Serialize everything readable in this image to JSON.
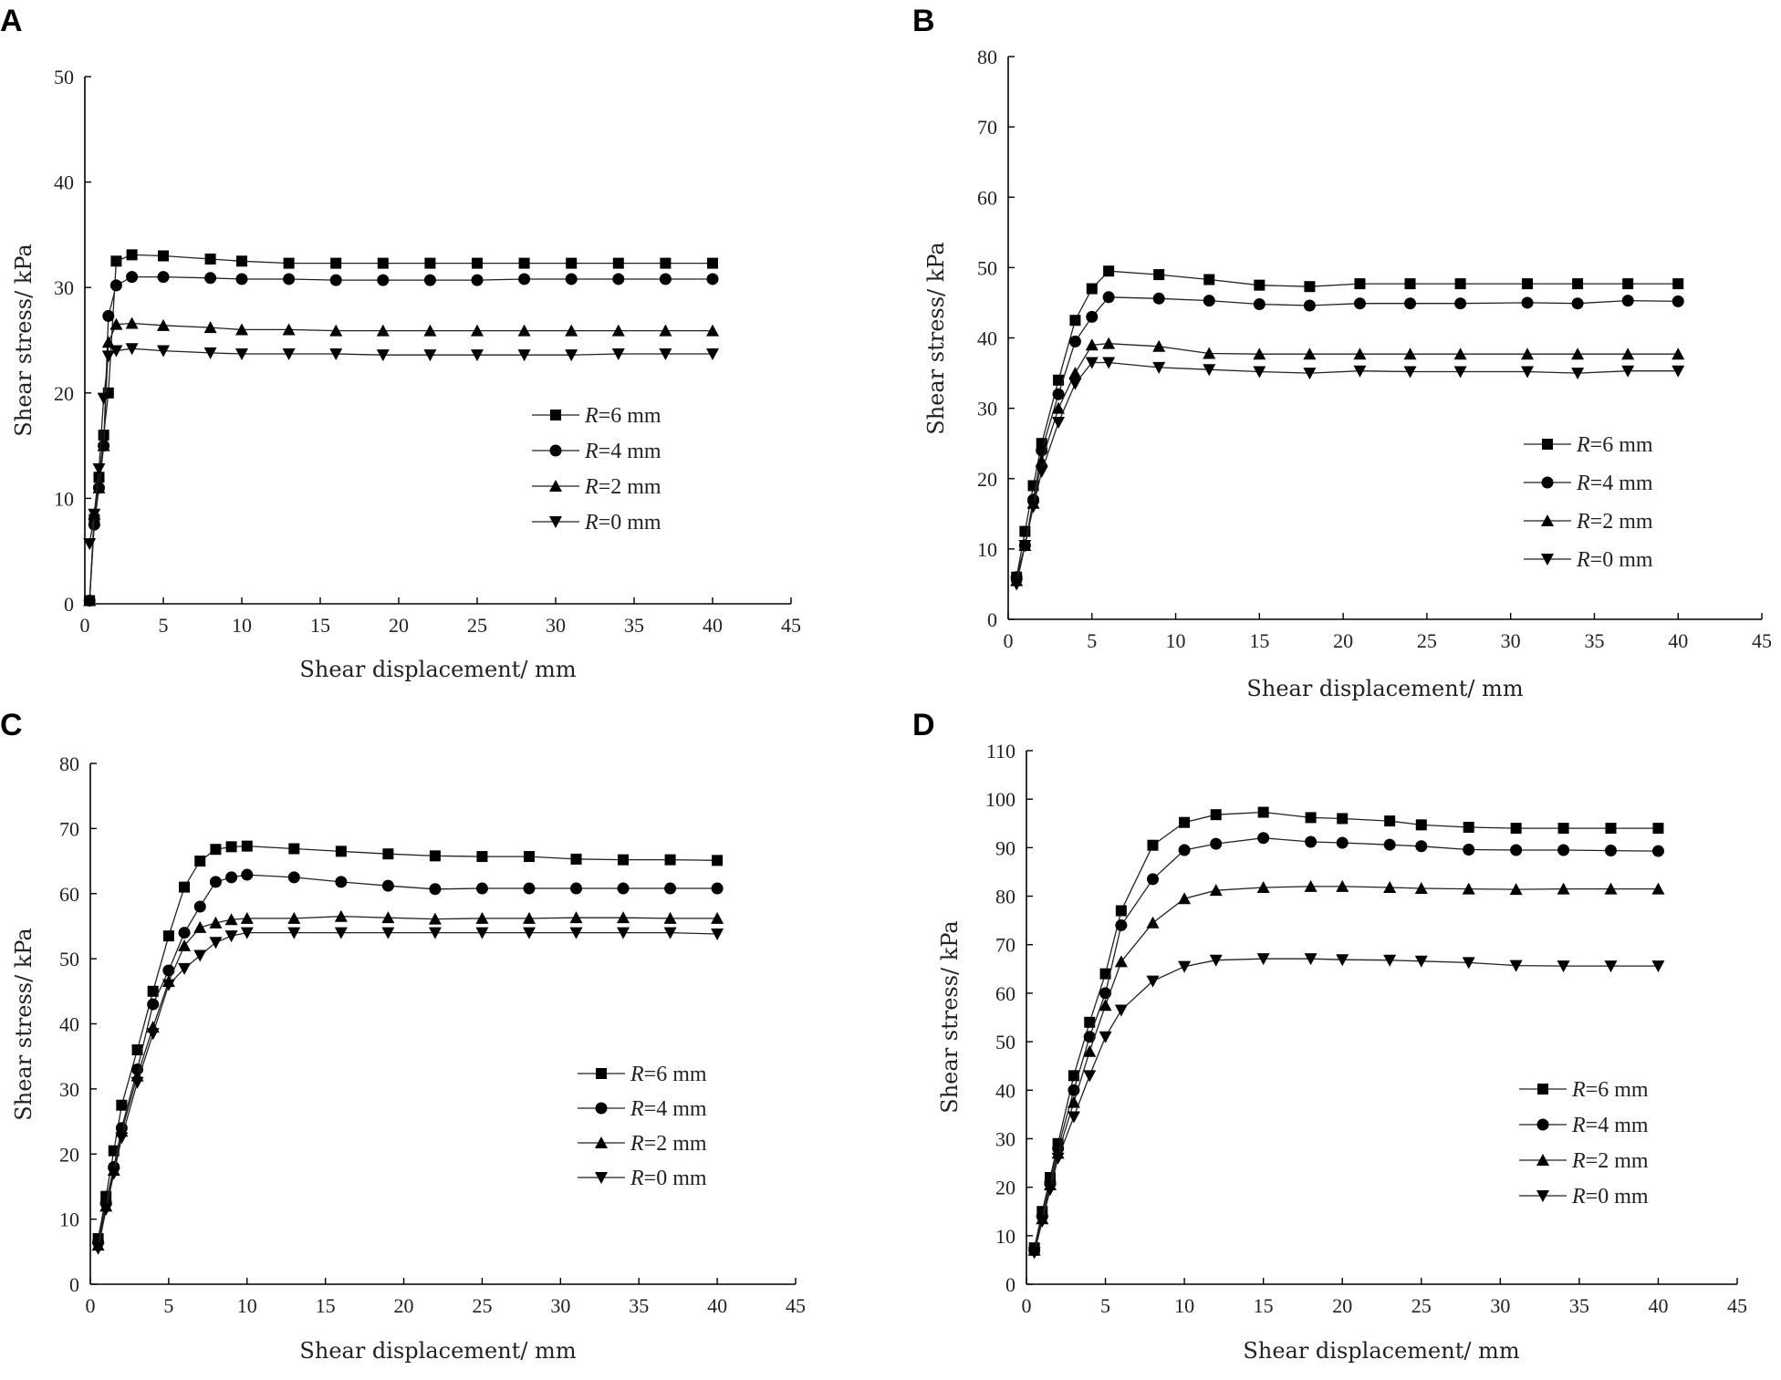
{
  "chart_data": [
    {
      "panel": "A",
      "type": "line",
      "title": "",
      "xlabel": "Shear displacement/ mm",
      "ylabel": "Shear stress/ kPa",
      "xlim": [
        0,
        45
      ],
      "ylim": [
        0,
        50
      ],
      "xticks": [
        0,
        5,
        10,
        15,
        20,
        25,
        30,
        35,
        40,
        45
      ],
      "yticks": [
        0,
        10,
        20,
        30,
        40,
        50
      ],
      "grid": false,
      "legend_position": "right-middle",
      "series": [
        {
          "name": "R=6 mm",
          "marker": "square",
          "x": [
            0.3,
            0.6,
            0.9,
            1.2,
            1.5,
            2,
            3,
            5,
            8,
            10,
            13,
            16,
            19,
            22,
            25,
            28,
            31,
            34,
            37,
            40
          ],
          "y": [
            0.3,
            8,
            12,
            16,
            20,
            32.5,
            33.1,
            33,
            32.7,
            32.5,
            32.3,
            32.3,
            32.3,
            32.3,
            32.3,
            32.3,
            32.3,
            32.3,
            32.3,
            32.3
          ]
        },
        {
          "name": "R=4 mm",
          "marker": "circle",
          "x": [
            0.3,
            0.6,
            0.9,
            1.2,
            1.5,
            2,
            3,
            5,
            8,
            10,
            13,
            16,
            19,
            22,
            25,
            28,
            31,
            34,
            37,
            40
          ],
          "y": [
            0.3,
            7.5,
            11,
            15,
            27.3,
            30.2,
            31,
            31,
            30.9,
            30.8,
            30.8,
            30.7,
            30.7,
            30.7,
            30.7,
            30.8,
            30.8,
            30.8,
            30.8,
            30.8
          ]
        },
        {
          "name": "R=2 mm",
          "marker": "triangle-up",
          "x": [
            0.3,
            0.6,
            0.9,
            1.2,
            1.5,
            2,
            3,
            5,
            8,
            10,
            13,
            16,
            19,
            22,
            25,
            28,
            31,
            34,
            37,
            40
          ],
          "y": [
            0.3,
            8.5,
            11,
            15,
            24.8,
            26.5,
            26.6,
            26.4,
            26.2,
            26,
            26,
            25.9,
            25.9,
            25.9,
            25.9,
            25.9,
            25.9,
            25.9,
            25.9,
            25.9
          ]
        },
        {
          "name": "R=0 mm",
          "marker": "triangle-down",
          "x": [
            0.3,
            0.6,
            0.9,
            1.2,
            1.5,
            2,
            3,
            5,
            8,
            10,
            13,
            16,
            19,
            22,
            25,
            28,
            31,
            34,
            37,
            40
          ],
          "y": [
            5.7,
            8.5,
            12.8,
            19.5,
            23.5,
            24,
            24.2,
            24,
            23.8,
            23.7,
            23.7,
            23.7,
            23.6,
            23.6,
            23.6,
            23.6,
            23.6,
            23.7,
            23.7,
            23.7
          ]
        }
      ]
    },
    {
      "panel": "B",
      "type": "line",
      "title": "",
      "xlabel": "Shear displacement/ mm",
      "ylabel": "Shear stress/ kPa",
      "xlim": [
        0,
        45
      ],
      "ylim": [
        0,
        80
      ],
      "xticks": [
        0,
        5,
        10,
        15,
        20,
        25,
        30,
        35,
        40,
        45
      ],
      "yticks": [
        0,
        10,
        20,
        30,
        40,
        50,
        60,
        70,
        80
      ],
      "grid": false,
      "legend_position": "right-middle",
      "series": [
        {
          "name": "R=6 mm",
          "marker": "square",
          "x": [
            0.5,
            1,
            1.5,
            2,
            3,
            4,
            5,
            6,
            9,
            12,
            15,
            18,
            21,
            24,
            27,
            31,
            34,
            37,
            40
          ],
          "y": [
            6,
            12.5,
            19,
            25,
            34,
            42.5,
            47,
            49.5,
            49,
            48.3,
            47.5,
            47.3,
            47.7,
            47.7,
            47.7,
            47.7,
            47.7,
            47.7,
            47.7
          ]
        },
        {
          "name": "R=4 mm",
          "marker": "circle",
          "x": [
            0.5,
            1,
            1.5,
            2,
            3,
            4,
            5,
            6,
            9,
            12,
            15,
            18,
            21,
            24,
            27,
            31,
            34,
            37,
            40
          ],
          "y": [
            6,
            10.5,
            17,
            24,
            32,
            39.5,
            43,
            45.8,
            45.6,
            45.3,
            44.8,
            44.6,
            44.9,
            44.9,
            44.9,
            45,
            44.9,
            45.3,
            45.2
          ]
        },
        {
          "name": "R=2 mm",
          "marker": "triangle-up",
          "x": [
            0.5,
            1,
            1.5,
            2,
            3,
            4,
            5,
            6,
            9,
            12,
            15,
            18,
            21,
            24,
            27,
            31,
            34,
            37,
            40
          ],
          "y": [
            5.5,
            10.5,
            16.5,
            22.5,
            30,
            35,
            39,
            39.2,
            38.8,
            37.8,
            37.7,
            37.7,
            37.7,
            37.7,
            37.7,
            37.7,
            37.7,
            37.7,
            37.7
          ]
        },
        {
          "name": "R=0 mm",
          "marker": "triangle-down",
          "x": [
            0.5,
            1,
            1.5,
            2,
            3,
            4,
            5,
            6,
            9,
            12,
            15,
            18,
            21,
            24,
            27,
            31,
            34,
            37,
            40
          ],
          "y": [
            5,
            10.5,
            16,
            21,
            28,
            33.5,
            36.5,
            36.5,
            35.8,
            35.5,
            35.2,
            35,
            35.3,
            35.2,
            35.2,
            35.2,
            35,
            35.3,
            35.3
          ]
        }
      ]
    },
    {
      "panel": "C",
      "type": "line",
      "title": "",
      "xlabel": "Shear displacement/ mm",
      "ylabel": "Shear stress/ kPa",
      "xlim": [
        0,
        45
      ],
      "ylim": [
        0,
        80
      ],
      "xticks": [
        0,
        5,
        10,
        15,
        20,
        25,
        30,
        35,
        40,
        45
      ],
      "yticks": [
        0,
        10,
        20,
        30,
        40,
        50,
        60,
        70,
        80
      ],
      "grid": false,
      "legend_position": "right-middle",
      "series": [
        {
          "name": "R=6 mm",
          "marker": "square",
          "x": [
            0.5,
            1,
            1.5,
            2,
            3,
            4,
            5,
            6,
            7,
            8,
            9,
            10,
            13,
            16,
            19,
            22,
            25,
            28,
            31,
            34,
            37,
            40
          ],
          "y": [
            7,
            13.5,
            20.5,
            27.5,
            36,
            45,
            53.5,
            61,
            65,
            66.8,
            67.2,
            67.3,
            66.9,
            66.5,
            66.1,
            65.8,
            65.7,
            65.7,
            65.3,
            65.2,
            65.2,
            65.1
          ]
        },
        {
          "name": "R=4 mm",
          "marker": "circle",
          "x": [
            0.5,
            1,
            1.5,
            2,
            3,
            4,
            5,
            6,
            7,
            8,
            9,
            10,
            13,
            16,
            19,
            22,
            25,
            28,
            31,
            34,
            37,
            40
          ],
          "y": [
            6.5,
            12.5,
            18,
            24,
            33,
            43,
            48.2,
            54,
            58,
            61.8,
            62.5,
            62.9,
            62.5,
            61.8,
            61.2,
            60.7,
            60.8,
            60.8,
            60.8,
            60.8,
            60.8,
            60.8
          ]
        },
        {
          "name": "R=2 mm",
          "marker": "triangle-up",
          "x": [
            0.5,
            1,
            1.5,
            2,
            3,
            4,
            5,
            6,
            7,
            8,
            9,
            10,
            13,
            16,
            19,
            22,
            25,
            28,
            31,
            34,
            37,
            40
          ],
          "y": [
            6,
            12,
            17.5,
            23.5,
            32,
            39.5,
            46.5,
            52,
            54.8,
            55.5,
            56,
            56.2,
            56.2,
            56.5,
            56.3,
            56.1,
            56.2,
            56.2,
            56.3,
            56.3,
            56.2,
            56.2
          ]
        },
        {
          "name": "R=0 mm",
          "marker": "triangle-down",
          "x": [
            0.5,
            1,
            1.5,
            2,
            3,
            4,
            5,
            6,
            7,
            8,
            9,
            10,
            13,
            16,
            19,
            22,
            25,
            28,
            31,
            34,
            37,
            40
          ],
          "y": [
            5.5,
            11.5,
            17,
            22.5,
            31,
            38.5,
            46,
            48.5,
            50.5,
            52.5,
            53.5,
            54,
            54,
            54,
            54,
            54,
            54,
            54,
            54,
            54,
            54,
            53.8
          ]
        }
      ]
    },
    {
      "panel": "D",
      "type": "line",
      "title": "",
      "xlabel": "Shear displacement/ mm",
      "ylabel": "Shear stress/ kPa",
      "xlim": [
        0,
        45
      ],
      "ylim": [
        0,
        110
      ],
      "xticks": [
        0,
        5,
        10,
        15,
        20,
        25,
        30,
        35,
        40,
        45
      ],
      "yticks": [
        0,
        10,
        20,
        30,
        40,
        50,
        60,
        70,
        80,
        90,
        100,
        110
      ],
      "grid": false,
      "legend_position": "right-middle",
      "series": [
        {
          "name": "R=6 mm",
          "marker": "square",
          "x": [
            0.5,
            1,
            1.5,
            2,
            3,
            4,
            5,
            6,
            8,
            10,
            12,
            15,
            18,
            20,
            23,
            25,
            28,
            31,
            34,
            37,
            40
          ],
          "y": [
            7.5,
            15,
            22,
            29,
            43,
            54,
            64,
            77,
            90.5,
            95.2,
            96.8,
            97.3,
            96.2,
            96,
            95.5,
            94.7,
            94.2,
            94,
            94,
            94,
            94
          ]
        },
        {
          "name": "R=4 mm",
          "marker": "circle",
          "x": [
            0.5,
            1,
            1.5,
            2,
            3,
            4,
            5,
            6,
            8,
            10,
            12,
            15,
            18,
            20,
            23,
            25,
            28,
            31,
            34,
            37,
            40
          ],
          "y": [
            7,
            14,
            21,
            28,
            40,
            51,
            60,
            74,
            83.5,
            89.5,
            90.8,
            92,
            91.2,
            91,
            90.6,
            90.3,
            89.6,
            89.5,
            89.5,
            89.4,
            89.3
          ]
        },
        {
          "name": "R=2 mm",
          "marker": "triangle-up",
          "x": [
            0.5,
            1,
            1.5,
            2,
            3,
            4,
            5,
            6,
            8,
            10,
            12,
            15,
            18,
            20,
            23,
            25,
            28,
            31,
            34,
            37,
            40
          ],
          "y": [
            7,
            13.5,
            20.5,
            27,
            37.5,
            48,
            57.5,
            66.5,
            74.5,
            79.5,
            81.2,
            81.8,
            82,
            82,
            81.8,
            81.6,
            81.5,
            81.4,
            81.5,
            81.5,
            81.5
          ]
        },
        {
          "name": "R=0 mm",
          "marker": "triangle-down",
          "x": [
            0.5,
            1,
            1.5,
            2,
            3,
            4,
            5,
            6,
            8,
            10,
            12,
            15,
            18,
            20,
            23,
            25,
            28,
            31,
            34,
            37,
            40
          ],
          "y": [
            6.5,
            13,
            19.5,
            26,
            34.5,
            43,
            51,
            56.5,
            62.5,
            65.5,
            66.8,
            67.1,
            67.1,
            66.9,
            66.8,
            66.6,
            66.3,
            65.7,
            65.6,
            65.6,
            65.6
          ]
        }
      ]
    }
  ]
}
